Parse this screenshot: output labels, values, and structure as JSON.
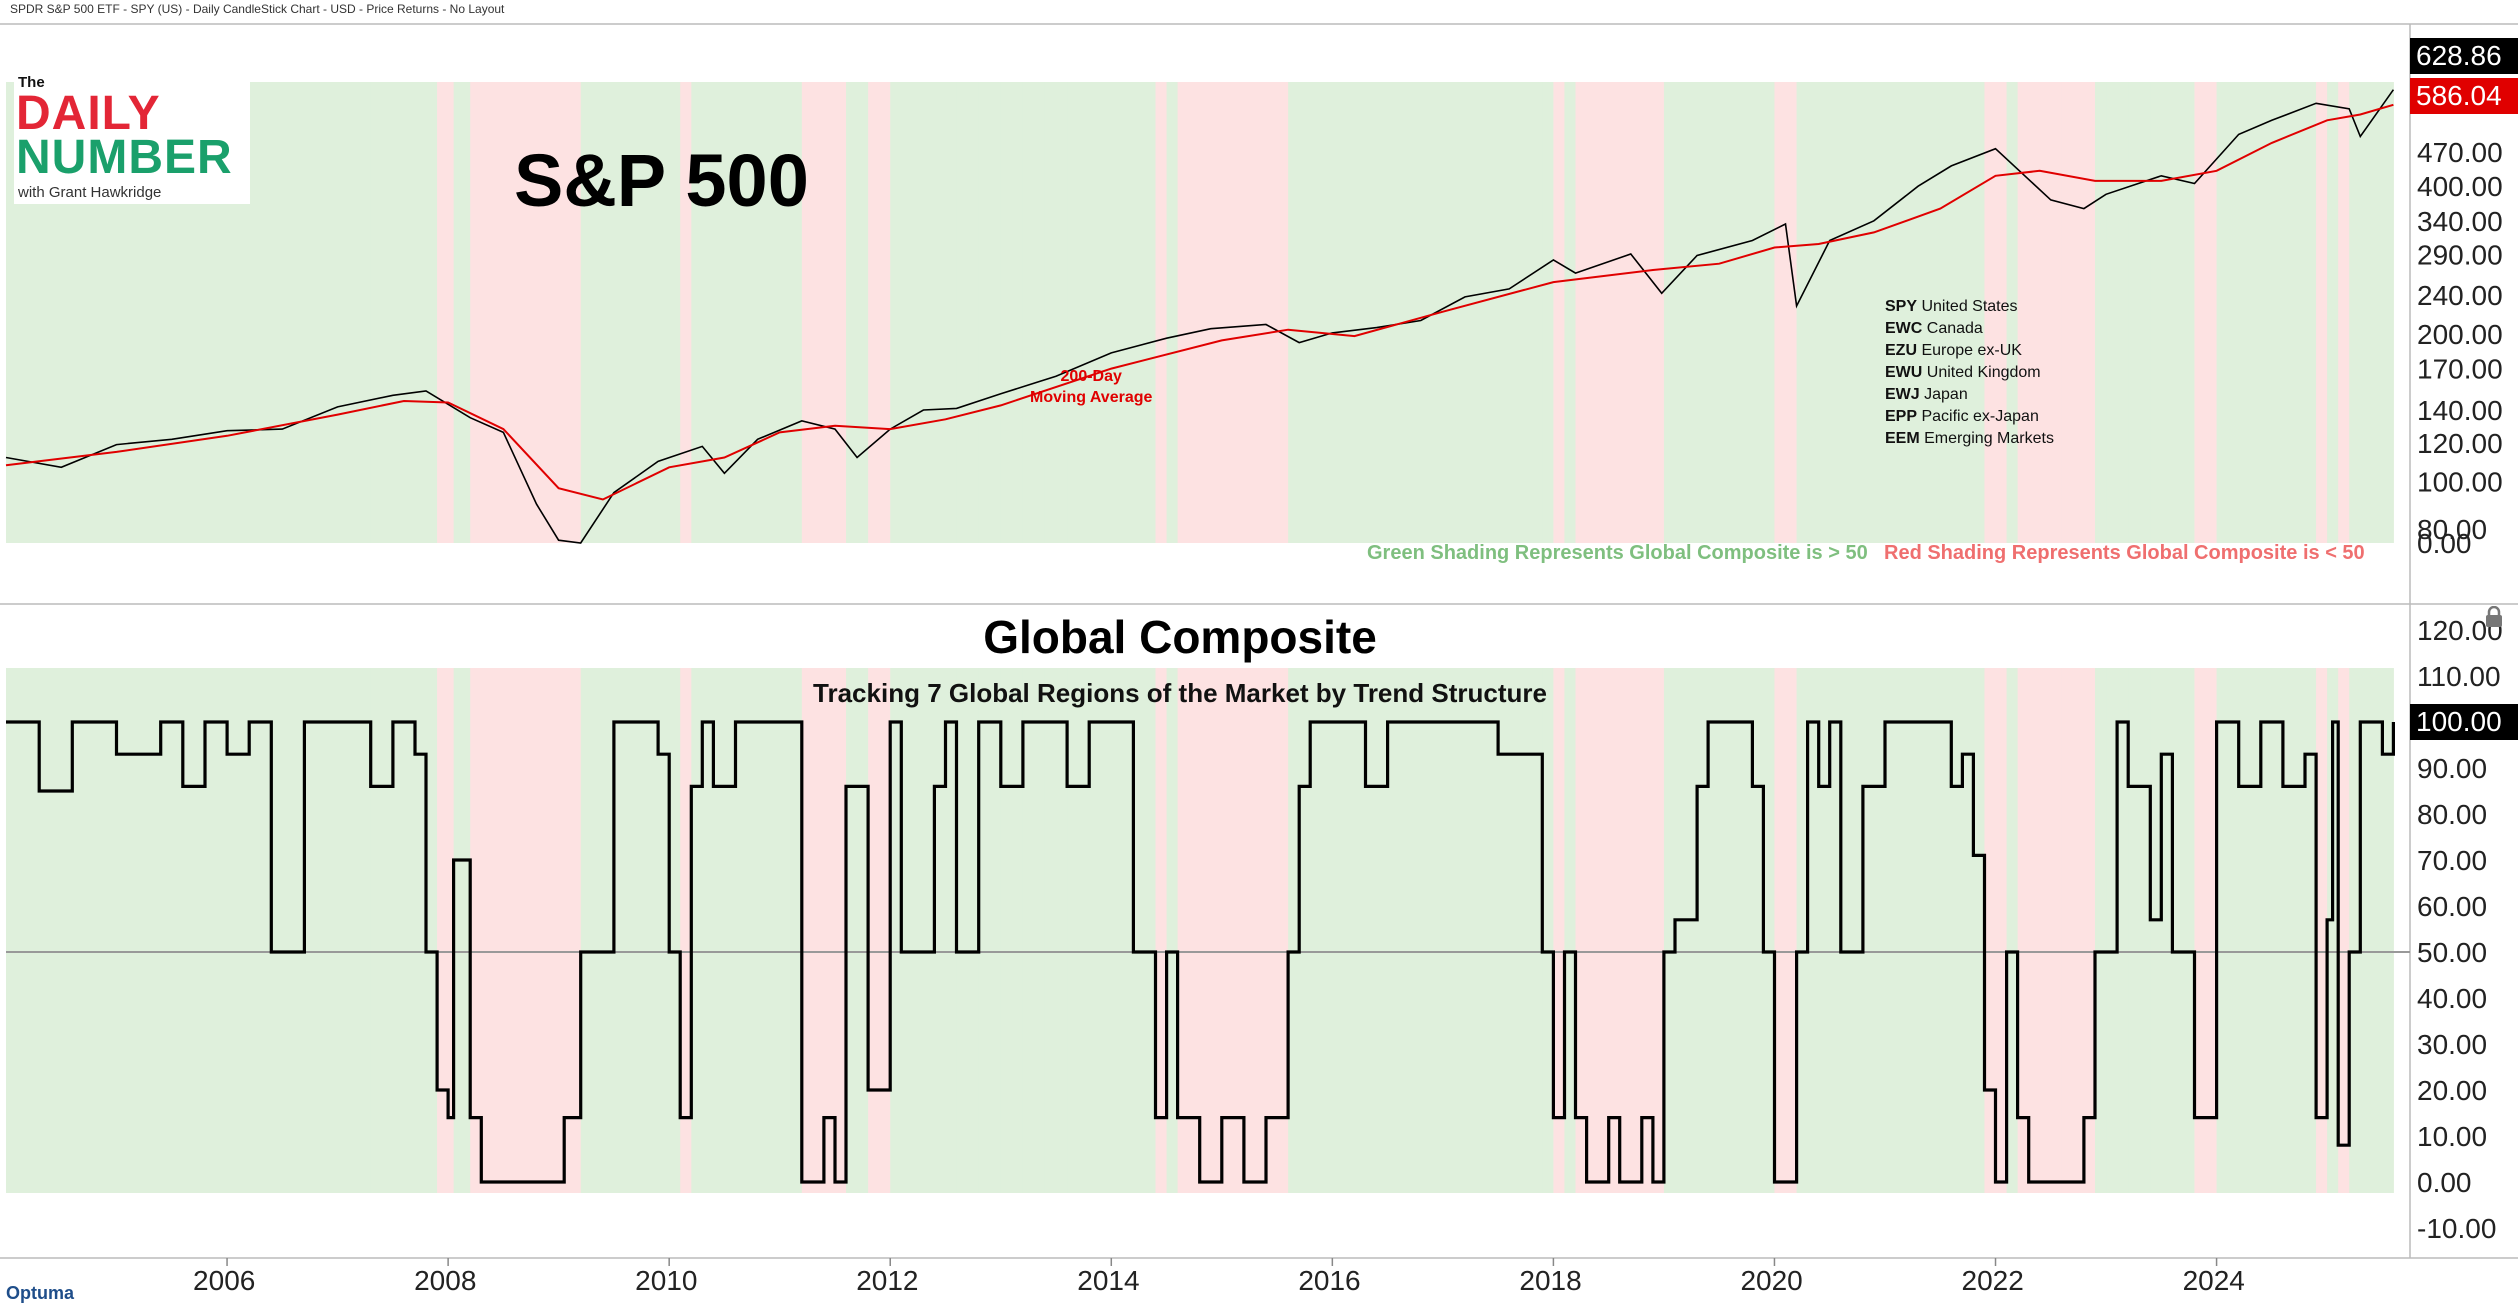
{
  "header": {
    "text": "SPDR S&P 500 ETF - SPY (US) - Daily CandleStick Chart - USD - Price Returns - No Layout"
  },
  "logo": {
    "the": "The",
    "daily": "DAILY",
    "number": "NUMBER",
    "with": "with Grant Hawkridge"
  },
  "top_panel": {
    "title": "S&P 500",
    "ma_label_line1": "200-Day",
    "ma_label_line2": "Moving Average",
    "legend": [
      {
        "ticker": "SPY",
        "name": "United States"
      },
      {
        "ticker": "EWC",
        "name": "Canada"
      },
      {
        "ticker": "EZU",
        "name": "Europe ex-UK"
      },
      {
        "ticker": "EWU",
        "name": "United Kingdom"
      },
      {
        "ticker": "EWJ",
        "name": "Japan"
      },
      {
        "ticker": "EPP",
        "name": "Pacific ex-Japan"
      },
      {
        "ticker": "EEM",
        "name": "Emerging Markets"
      }
    ],
    "green_note": "Green Shading Represents Global Composite is > 50",
    "red_note": "Red Shading Represents Global Composite is < 50",
    "last_price": "628.86",
    "ma_value": "586.04"
  },
  "bottom_panel": {
    "title": "Global Composite",
    "subtitle": "Tracking 7 Global Regions of the Market by Trend Structure",
    "last_value": "100.00"
  },
  "footer": {
    "brand": "Optuma"
  },
  "colors": {
    "green_shade": "#dff0dc",
    "red_shade": "#fde2e2",
    "price": "#000000",
    "ma": "#e00000",
    "green_text": "#7fbf7f",
    "red_text": "#ef6f6f"
  },
  "chart_data": [
    {
      "type": "line",
      "title": "S&P 500",
      "y_scale": "log",
      "y_ticks": [
        "628.86",
        "586.04",
        "470.00",
        "400.00",
        "340.00",
        "290.00",
        "240.00",
        "200.00",
        "170.00",
        "140.00",
        "120.00",
        "100.00",
        "80.00",
        "0.00"
      ],
      "x_ticks": [
        "2006",
        "2008",
        "2010",
        "2012",
        "2014",
        "2016",
        "2018",
        "2020",
        "2022",
        "2024"
      ],
      "series": [
        {
          "name": "SPY",
          "x": [
            2004.0,
            2004.5,
            2005.0,
            2005.5,
            2006.0,
            2006.5,
            2007.0,
            2007.5,
            2007.8,
            2008.2,
            2008.5,
            2008.8,
            2009.0,
            2009.2,
            2009.5,
            2009.9,
            2010.3,
            2010.5,
            2010.8,
            2011.2,
            2011.5,
            2011.7,
            2012.0,
            2012.3,
            2012.6,
            2013.0,
            2013.5,
            2014.0,
            2014.5,
            2014.9,
            2015.4,
            2015.7,
            2016.0,
            2016.4,
            2016.8,
            2017.2,
            2017.6,
            2018.0,
            2018.2,
            2018.7,
            2018.98,
            2019.3,
            2019.8,
            2020.1,
            2020.2,
            2020.5,
            2020.9,
            2021.3,
            2021.6,
            2022.0,
            2022.5,
            2022.8,
            2023.0,
            2023.5,
            2023.8,
            2024.2,
            2024.5,
            2024.9,
            2025.2,
            2025.3,
            2025.6
          ],
          "values": [
            112,
            107,
            119,
            122,
            127,
            128,
            142,
            150,
            153,
            135,
            126,
            90,
            76,
            75,
            95,
            110,
            118,
            104,
            122,
            133,
            128,
            112,
            128,
            140,
            141,
            151,
            164,
            183,
            196,
            205,
            209,
            192,
            201,
            206,
            213,
            238,
            247,
            283,
            266,
            291,
            242,
            289,
            310,
            335,
            228,
            310,
            340,
            400,
            440,
            477,
            375,
            360,
            385,
            420,
            405,
            510,
            545,
            590,
            575,
            505,
            628.86
          ]
        },
        {
          "name": "200-Day Moving Average",
          "x": [
            2004.0,
            2005.0,
            2006.0,
            2007.0,
            2007.6,
            2008.0,
            2008.5,
            2009.0,
            2009.4,
            2010.0,
            2010.5,
            2011.0,
            2011.5,
            2012.0,
            2012.5,
            2013.0,
            2014.0,
            2015.0,
            2015.6,
            2016.2,
            2017.0,
            2018.0,
            2018.9,
            2019.5,
            2020.0,
            2020.4,
            2020.9,
            2021.5,
            2022.0,
            2022.4,
            2022.9,
            2023.5,
            2024.0,
            2024.5,
            2025.0,
            2025.3,
            2025.6
          ],
          "values": [
            108,
            115,
            124,
            137,
            146,
            145,
            128,
            97,
            92,
            107,
            112,
            126,
            130,
            128,
            134,
            143,
            170,
            194,
            204,
            198,
            222,
            255,
            270,
            278,
            300,
            305,
            322,
            360,
            420,
            430,
            410,
            410,
            430,
            490,
            545,
            560,
            586.04
          ]
        }
      ]
    },
    {
      "type": "line",
      "title": "Global Composite",
      "subtitle": "Tracking 7 Global Regions of the Market by Trend Structure",
      "ylim": [
        -10,
        120
      ],
      "y_ticks": [
        "120.00",
        "110.00",
        "100.00",
        "90.00",
        "80.00",
        "70.00",
        "60.00",
        "50.00",
        "40.00",
        "30.00",
        "20.00",
        "10.00",
        "0.00",
        "-10.00"
      ],
      "x_ticks": [
        "2006",
        "2008",
        "2010",
        "2012",
        "2014",
        "2016",
        "2018",
        "2020",
        "2022",
        "2024"
      ],
      "reference_line": 50,
      "series": [
        {
          "name": "Global Composite",
          "x": [
            2004.0,
            2004.3,
            2004.6,
            2005.0,
            2005.4,
            2005.6,
            2005.8,
            2006.0,
            2006.2,
            2006.4,
            2006.7,
            2007.0,
            2007.3,
            2007.5,
            2007.7,
            2007.8,
            2007.9,
            2008.0,
            2008.05,
            2008.2,
            2008.3,
            2008.4,
            2009.0,
            2009.05,
            2009.2,
            2009.4,
            2009.5,
            2009.7,
            2009.9,
            2010.0,
            2010.1,
            2010.2,
            2010.3,
            2010.4,
            2010.6,
            2010.8,
            2011.0,
            2011.2,
            2011.3,
            2011.4,
            2011.5,
            2011.6,
            2011.8,
            2012.0,
            2012.1,
            2012.3,
            2012.4,
            2012.5,
            2012.6,
            2012.8,
            2013.0,
            2013.2,
            2013.4,
            2013.6,
            2013.8,
            2014.0,
            2014.2,
            2014.4,
            2014.5,
            2014.6,
            2014.8,
            2015.0,
            2015.2,
            2015.3,
            2015.4,
            2015.6,
            2015.7,
            2015.8,
            2016.0,
            2016.1,
            2016.3,
            2016.5,
            2016.8,
            2017.0,
            2017.5,
            2017.9,
            2018.0,
            2018.1,
            2018.2,
            2018.3,
            2018.5,
            2018.6,
            2018.8,
            2018.9,
            2019.0,
            2019.1,
            2019.3,
            2019.4,
            2019.6,
            2019.8,
            2019.9,
            2020.0,
            2020.1,
            2020.2,
            2020.3,
            2020.4,
            2020.5,
            2020.6,
            2020.8,
            2021.0,
            2021.3,
            2021.5,
            2021.6,
            2021.7,
            2021.8,
            2021.9,
            2022.0,
            2022.1,
            2022.2,
            2022.3,
            2022.4,
            2022.6,
            2022.8,
            2022.9,
            2023.0,
            2023.1,
            2023.2,
            2023.4,
            2023.5,
            2023.6,
            2023.8,
            2024.0,
            2024.2,
            2024.4,
            2024.6,
            2024.8,
            2024.9,
            2025.0,
            2025.05,
            2025.1,
            2025.2,
            2025.3,
            2025.4,
            2025.5,
            2025.6
          ],
          "values": [
            100,
            85,
            100,
            93,
            100,
            86,
            100,
            93,
            100,
            50,
            100,
            100,
            86,
            100,
            93,
            50,
            20,
            14,
            70,
            14,
            0,
            0,
            0,
            14,
            50,
            50,
            100,
            100,
            93,
            50,
            14,
            86,
            100,
            86,
            100,
            100,
            100,
            0,
            0,
            14,
            0,
            86,
            20,
            100,
            50,
            50,
            86,
            100,
            50,
            100,
            86,
            100,
            100,
            86,
            100,
            100,
            50,
            14,
            50,
            14,
            0,
            14,
            0,
            0,
            14,
            50,
            86,
            100,
            100,
            100,
            86,
            100,
            100,
            100,
            93,
            50,
            14,
            50,
            14,
            0,
            14,
            0,
            14,
            0,
            50,
            57,
            86,
            100,
            100,
            86,
            50,
            0,
            0,
            50,
            100,
            86,
            100,
            50,
            86,
            100,
            100,
            100,
            86,
            93,
            71,
            20,
            0,
            50,
            14,
            0,
            0,
            0,
            14,
            50,
            50,
            100,
            86,
            57,
            93,
            50,
            14,
            100,
            86,
            100,
            86,
            93,
            14,
            57,
            100,
            8,
            50,
            100,
            100,
            93,
            100
          ]
        }
      ]
    }
  ]
}
